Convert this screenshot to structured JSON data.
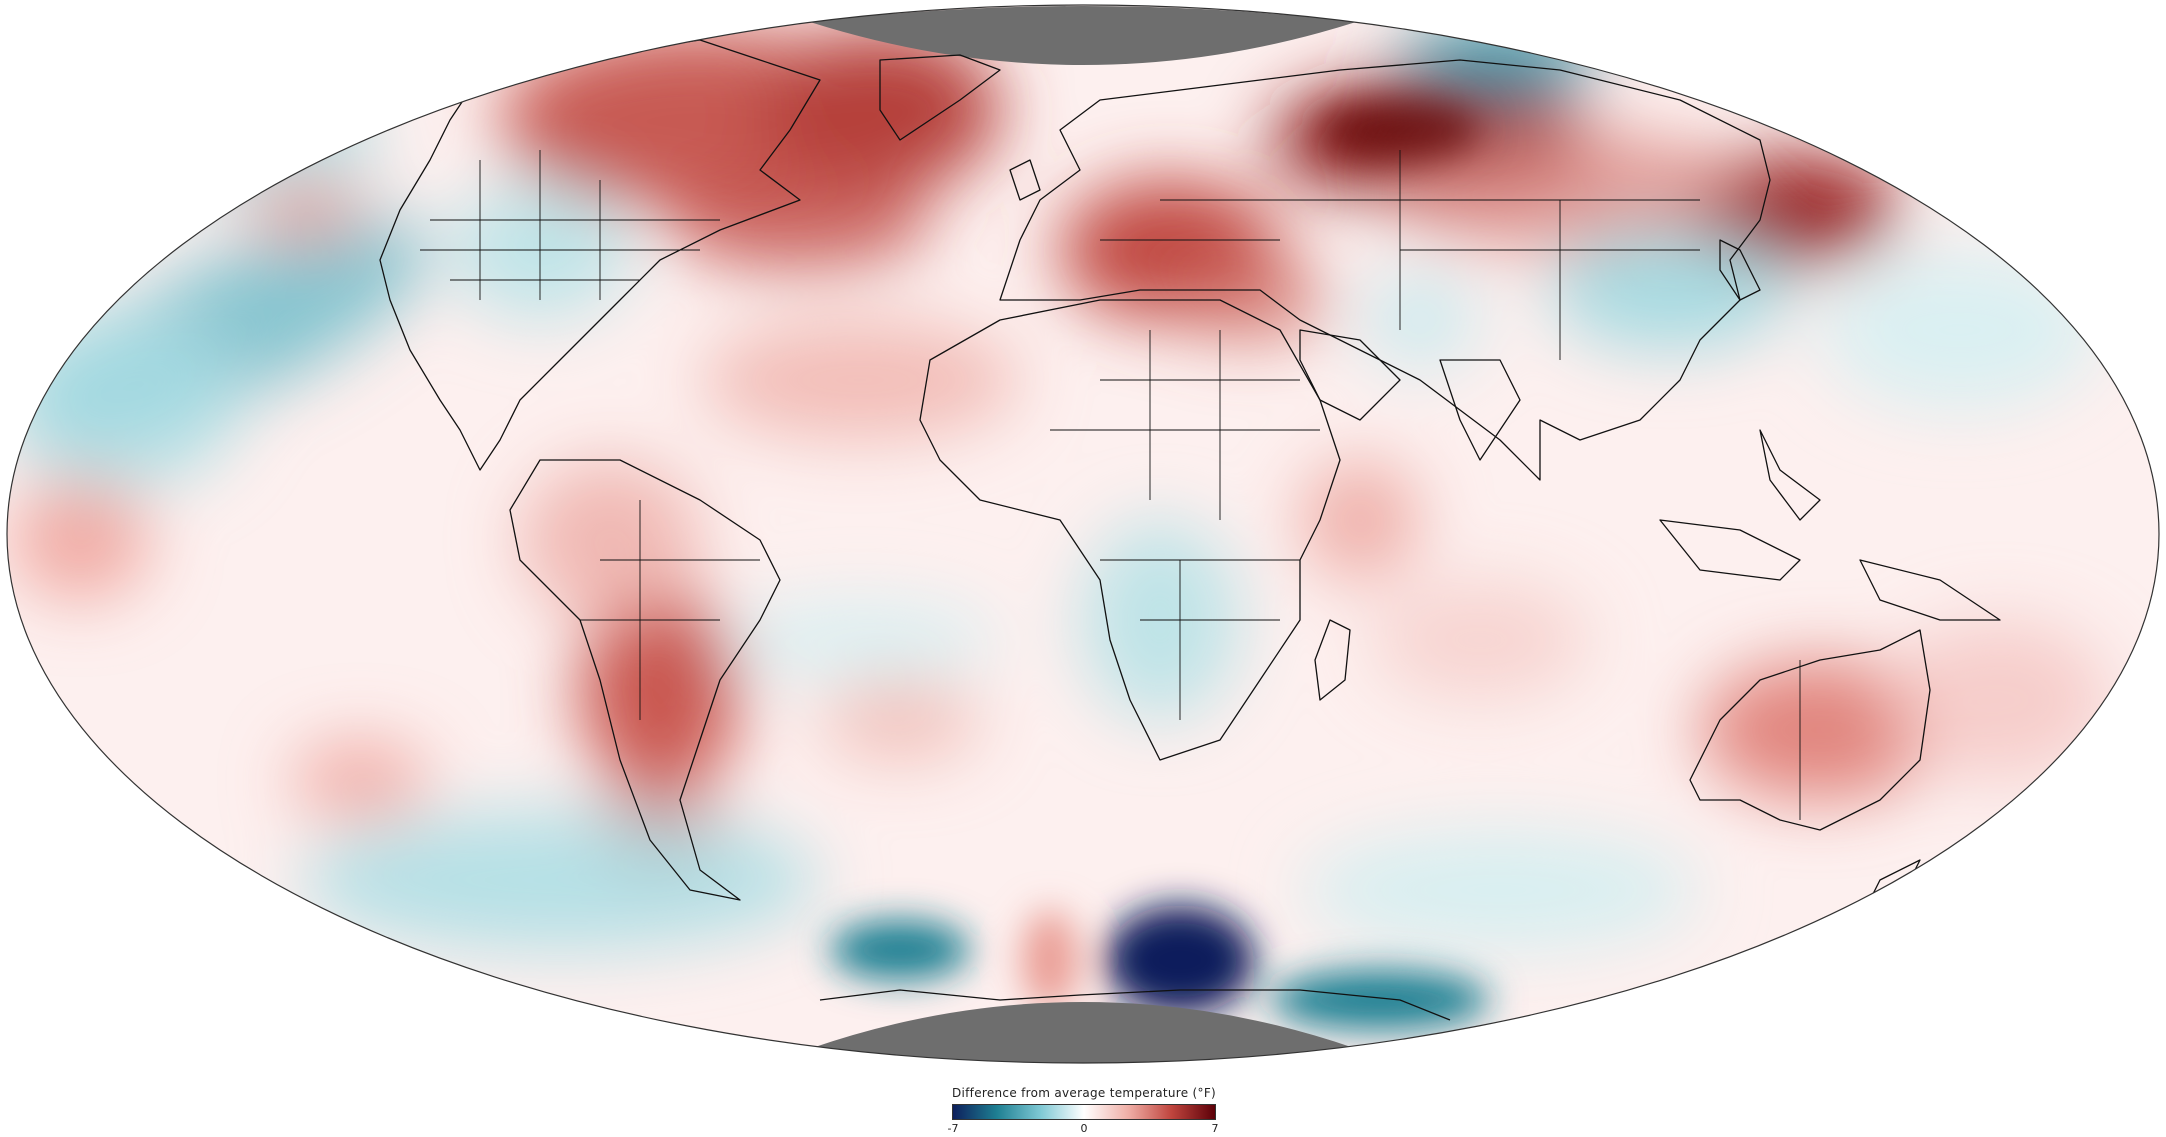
{
  "legend": {
    "title": "Difference from average temperature (°F)",
    "min_label": "-7",
    "mid_label": "0",
    "max_label": "7",
    "colors": [
      "#0d1f5c",
      "#1e7f92",
      "#7ec8d4",
      "#ffffff",
      "#f0b0a8",
      "#c0453e",
      "#5c0008"
    ]
  },
  "map": {
    "projection": "Mollweide",
    "no_data_color": "#6e6e6e",
    "warm_regions": [
      "Canada",
      "Greenland",
      "Siberia",
      "Eastern Europe",
      "South America",
      "Australia",
      "Eastern Russia"
    ],
    "cool_regions": [
      "North Pacific",
      "Southern Africa",
      "Southern Ocean",
      "Central Asia"
    ]
  }
}
